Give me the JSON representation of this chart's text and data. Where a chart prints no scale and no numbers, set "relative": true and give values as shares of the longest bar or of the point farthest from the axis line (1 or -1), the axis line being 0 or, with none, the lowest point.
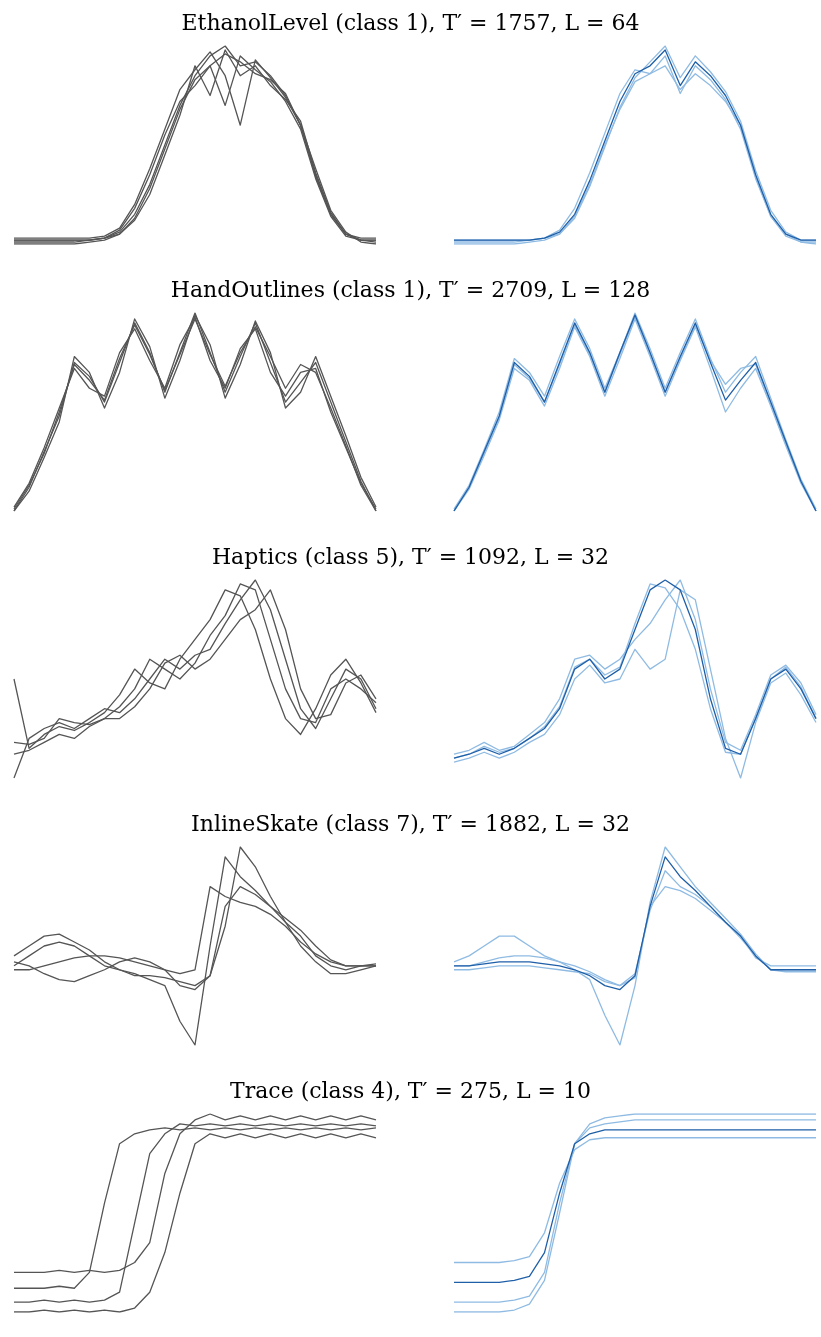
{
  "chart_data": [
    {
      "type": "line",
      "title": "EthanolLevel (class 1), T′ = 1757, L = 64",
      "relative": true,
      "marker": "none",
      "categories": [
        null,
        null,
        null,
        null,
        null,
        null,
        null,
        null,
        null,
        null,
        null,
        null,
        null,
        null,
        null,
        null,
        null,
        null,
        null,
        null,
        null,
        null,
        null,
        null,
        null
      ],
      "series": [
        {
          "color": "#555555",
          "values": [
            0.02,
            0.02,
            0.02,
            0.02,
            0.02,
            0.02,
            0.03,
            0.06,
            0.15,
            0.3,
            0.5,
            0.7,
            0.85,
            0.95,
            1.0,
            0.9,
            0.92,
            0.85,
            0.75,
            0.6,
            0.35,
            0.15,
            0.05,
            0.02,
            0.02
          ]
        },
        {
          "color": "#555555",
          "values": [
            0.02,
            0.02,
            0.02,
            0.02,
            0.02,
            0.02,
            0.03,
            0.07,
            0.18,
            0.35,
            0.55,
            0.72,
            0.8,
            0.9,
            0.7,
            0.95,
            0.88,
            0.82,
            0.72,
            0.58,
            0.33,
            0.14,
            0.04,
            0.02,
            0.02
          ]
        },
        {
          "color": "#555555",
          "values": [
            0.01,
            0.01,
            0.01,
            0.01,
            0.01,
            0.02,
            0.03,
            0.05,
            0.12,
            0.25,
            0.45,
            0.65,
            0.9,
            0.75,
            0.98,
            0.85,
            0.9,
            0.8,
            0.73,
            0.62,
            0.36,
            0.16,
            0.05,
            0.02,
            0.01
          ]
        },
        {
          "color": "#555555",
          "values": [
            0.03,
            0.03,
            0.03,
            0.03,
            0.03,
            0.03,
            0.04,
            0.08,
            0.2,
            0.38,
            0.58,
            0.78,
            0.88,
            0.97,
            0.85,
            0.6,
            0.93,
            0.84,
            0.74,
            0.6,
            0.34,
            0.15,
            0.05,
            0.03,
            0.03
          ]
        },
        {
          "color": "#555555",
          "values": [
            0.0,
            0.0,
            0.0,
            0.0,
            0.0,
            0.01,
            0.02,
            0.05,
            0.13,
            0.28,
            0.48,
            0.68,
            0.83,
            0.9,
            0.96,
            0.92,
            0.86,
            0.83,
            0.76,
            0.6,
            0.38,
            0.17,
            0.06,
            0.01,
            0.0
          ]
        }
      ]
    },
    {
      "type": "line",
      "relative": true,
      "marker": "none",
      "categories": [
        null,
        null,
        null,
        null,
        null,
        null,
        null,
        null,
        null,
        null,
        null,
        null,
        null,
        null,
        null,
        null,
        null,
        null,
        null,
        null,
        null,
        null,
        null,
        null,
        null
      ],
      "series": [
        {
          "color": "#8fbbe3",
          "values": [
            0.01,
            0.01,
            0.01,
            0.01,
            0.01,
            0.02,
            0.03,
            0.07,
            0.18,
            0.36,
            0.56,
            0.76,
            0.88,
            0.86,
            0.95,
            0.76,
            0.9,
            0.83,
            0.73,
            0.58,
            0.33,
            0.14,
            0.04,
            0.01,
            0.01
          ]
        },
        {
          "color": "#8fbbe3",
          "values": [
            0.02,
            0.02,
            0.02,
            0.02,
            0.02,
            0.02,
            0.03,
            0.05,
            0.13,
            0.29,
            0.49,
            0.69,
            0.84,
            0.92,
            1.0,
            0.84,
            0.95,
            0.87,
            0.77,
            0.62,
            0.37,
            0.17,
            0.06,
            0.02,
            0.02
          ]
        },
        {
          "color": "#8fbbe3",
          "values": [
            0.0,
            0.0,
            0.0,
            0.0,
            0.0,
            0.01,
            0.02,
            0.05,
            0.14,
            0.3,
            0.5,
            0.68,
            0.82,
            0.86,
            0.9,
            0.78,
            0.86,
            0.8,
            0.72,
            0.6,
            0.34,
            0.14,
            0.05,
            0.01,
            0.0
          ]
        },
        {
          "color": "#1f5fa8",
          "values": [
            0.02,
            0.02,
            0.02,
            0.02,
            0.02,
            0.02,
            0.03,
            0.06,
            0.15,
            0.32,
            0.52,
            0.72,
            0.86,
            0.9,
            0.98,
            0.8,
            0.92,
            0.85,
            0.75,
            0.6,
            0.35,
            0.15,
            0.05,
            0.02,
            0.02
          ]
        }
      ]
    },
    {
      "type": "line",
      "title": "HandOutlines (class 1), T′ = 2709, L = 128",
      "relative": true,
      "marker": "none",
      "categories": [
        null,
        null,
        null,
        null,
        null,
        null,
        null,
        null,
        null,
        null,
        null,
        null,
        null,
        null,
        null,
        null,
        null,
        null,
        null,
        null,
        null,
        null,
        null,
        null,
        null
      ],
      "series": [
        {
          "color": "#555555",
          "values": [
            0.0,
            0.12,
            0.3,
            0.48,
            0.75,
            0.68,
            0.55,
            0.75,
            0.95,
            0.8,
            0.6,
            0.8,
            1.0,
            0.8,
            0.6,
            0.78,
            0.95,
            0.75,
            0.55,
            0.65,
            0.75,
            0.55,
            0.35,
            0.15,
            0.0
          ]
        },
        {
          "color": "#555555",
          "values": [
            0.02,
            0.14,
            0.32,
            0.52,
            0.72,
            0.62,
            0.58,
            0.8,
            0.92,
            0.76,
            0.62,
            0.84,
            0.98,
            0.76,
            0.62,
            0.82,
            0.92,
            0.7,
            0.58,
            0.7,
            0.72,
            0.5,
            0.32,
            0.14,
            0.01
          ]
        },
        {
          "color": "#555555",
          "values": [
            0.0,
            0.1,
            0.27,
            0.45,
            0.78,
            0.7,
            0.52,
            0.7,
            0.97,
            0.83,
            0.57,
            0.76,
            0.99,
            0.84,
            0.57,
            0.74,
            0.96,
            0.8,
            0.52,
            0.6,
            0.78,
            0.58,
            0.38,
            0.17,
            0.02
          ]
        },
        {
          "color": "#555555",
          "values": [
            0.01,
            0.13,
            0.29,
            0.5,
            0.74,
            0.66,
            0.56,
            0.77,
            0.94,
            0.79,
            0.61,
            0.79,
            0.97,
            0.79,
            0.63,
            0.8,
            0.93,
            0.78,
            0.62,
            0.74,
            0.7,
            0.52,
            0.33,
            0.13,
            0.0
          ]
        }
      ]
    },
    {
      "type": "line",
      "relative": true,
      "marker": "none",
      "categories": [
        null,
        null,
        null,
        null,
        null,
        null,
        null,
        null,
        null,
        null,
        null,
        null,
        null,
        null,
        null,
        null,
        null,
        null,
        null,
        null,
        null,
        null,
        null,
        null,
        null
      ],
      "series": [
        {
          "color": "#8fbbe3",
          "values": [
            0.01,
            0.13,
            0.31,
            0.5,
            0.77,
            0.7,
            0.58,
            0.78,
            0.97,
            0.82,
            0.62,
            0.8,
            1.0,
            0.82,
            0.62,
            0.8,
            0.97,
            0.77,
            0.6,
            0.7,
            0.78,
            0.57,
            0.36,
            0.16,
            0.01
          ]
        },
        {
          "color": "#8fbbe3",
          "values": [
            0.0,
            0.11,
            0.28,
            0.46,
            0.72,
            0.66,
            0.53,
            0.72,
            0.93,
            0.78,
            0.58,
            0.77,
            0.97,
            0.78,
            0.58,
            0.76,
            0.93,
            0.72,
            0.5,
            0.62,
            0.72,
            0.53,
            0.33,
            0.14,
            0.0
          ]
        },
        {
          "color": "#8fbbe3",
          "values": [
            0.0,
            0.12,
            0.29,
            0.47,
            0.74,
            0.67,
            0.55,
            0.74,
            0.94,
            0.79,
            0.6,
            0.79,
            0.98,
            0.79,
            0.6,
            0.77,
            0.94,
            0.76,
            0.64,
            0.72,
            0.74,
            0.54,
            0.34,
            0.15,
            0.0
          ]
        },
        {
          "color": "#1f5fa8",
          "values": [
            0.0,
            0.12,
            0.3,
            0.48,
            0.75,
            0.68,
            0.55,
            0.75,
            0.95,
            0.8,
            0.6,
            0.8,
            0.99,
            0.8,
            0.6,
            0.78,
            0.95,
            0.75,
            0.56,
            0.66,
            0.75,
            0.55,
            0.35,
            0.15,
            0.0
          ]
        }
      ]
    },
    {
      "type": "line",
      "title": "Haptics (class 5), T′ = 1092, L = 32",
      "relative": true,
      "marker": "none",
      "categories": [
        null,
        null,
        null,
        null,
        null,
        null,
        null,
        null,
        null,
        null,
        null,
        null,
        null,
        null,
        null,
        null,
        null,
        null,
        null,
        null,
        null,
        null,
        null,
        null,
        null
      ],
      "series": [
        {
          "color": "#555555",
          "values": [
            0.0,
            0.2,
            0.25,
            0.28,
            0.25,
            0.3,
            0.35,
            0.33,
            0.4,
            0.5,
            0.6,
            0.55,
            0.62,
            0.65,
            0.78,
            0.9,
            1.0,
            0.85,
            0.6,
            0.35,
            0.25,
            0.4,
            0.55,
            0.5,
            0.35
          ]
        },
        {
          "color": "#555555",
          "values": [
            0.5,
            0.15,
            0.22,
            0.26,
            0.24,
            0.28,
            0.33,
            0.42,
            0.55,
            0.48,
            0.45,
            0.6,
            0.7,
            0.8,
            0.95,
            0.92,
            0.75,
            0.5,
            0.3,
            0.22,
            0.35,
            0.52,
            0.6,
            0.48,
            0.33
          ]
        },
        {
          "color": "#555555",
          "values": [
            0.18,
            0.17,
            0.2,
            0.3,
            0.28,
            0.27,
            0.3,
            0.36,
            0.45,
            0.6,
            0.55,
            0.5,
            0.58,
            0.72,
            0.82,
            0.98,
            0.95,
            0.7,
            0.45,
            0.3,
            0.28,
            0.45,
            0.5,
            0.45,
            0.38
          ]
        },
        {
          "color": "#555555",
          "values": [
            0.12,
            0.14,
            0.18,
            0.22,
            0.2,
            0.26,
            0.3,
            0.3,
            0.36,
            0.45,
            0.58,
            0.62,
            0.55,
            0.6,
            0.7,
            0.8,
            0.85,
            0.95,
            0.75,
            0.45,
            0.3,
            0.32,
            0.48,
            0.52,
            0.4
          ]
        }
      ]
    },
    {
      "type": "line",
      "relative": true,
      "marker": "none",
      "categories": [
        null,
        null,
        null,
        null,
        null,
        null,
        null,
        null,
        null,
        null,
        null,
        null,
        null,
        null,
        null,
        null,
        null,
        null,
        null,
        null,
        null,
        null,
        null,
        null,
        null
      ],
      "series": [
        {
          "color": "#8fbbe3",
          "values": [
            0.12,
            0.14,
            0.18,
            0.14,
            0.16,
            0.22,
            0.28,
            0.4,
            0.6,
            0.62,
            0.55,
            0.6,
            0.7,
            0.78,
            0.9,
            1.0,
            0.8,
            0.45,
            0.18,
            0.14,
            0.32,
            0.52,
            0.57,
            0.48,
            0.32
          ]
        },
        {
          "color": "#8fbbe3",
          "values": [
            0.08,
            0.1,
            0.13,
            0.1,
            0.13,
            0.18,
            0.22,
            0.32,
            0.5,
            0.57,
            0.48,
            0.5,
            0.65,
            0.55,
            0.6,
            0.95,
            0.9,
            0.55,
            0.2,
            0.0,
            0.28,
            0.48,
            0.53,
            0.42,
            0.28
          ]
        },
        {
          "color": "#8fbbe3",
          "values": [
            0.1,
            0.12,
            0.16,
            0.13,
            0.15,
            0.2,
            0.26,
            0.36,
            0.56,
            0.6,
            0.52,
            0.56,
            0.78,
            0.98,
            0.96,
            0.85,
            0.65,
            0.35,
            0.13,
            0.12,
            0.3,
            0.5,
            0.56,
            0.46,
            0.3
          ]
        },
        {
          "color": "#1f5fa8",
          "values": [
            0.1,
            0.12,
            0.15,
            0.12,
            0.15,
            0.2,
            0.25,
            0.35,
            0.55,
            0.6,
            0.5,
            0.55,
            0.75,
            0.95,
            1.0,
            0.95,
            0.75,
            0.4,
            0.15,
            0.12,
            0.3,
            0.5,
            0.55,
            0.45,
            0.3
          ]
        }
      ]
    },
    {
      "type": "line",
      "title": "InlineSkate (class 7), T′ = 1882, L = 32",
      "relative": true,
      "marker": "none",
      "categories": [
        null,
        null,
        null,
        null,
        null,
        null,
        null,
        null,
        null,
        null,
        null,
        null,
        null,
        null,
        null,
        null,
        null,
        null,
        null,
        null,
        null,
        null,
        null,
        null,
        null
      ],
      "series": [
        {
          "color": "#555555",
          "values": [
            0.4,
            0.45,
            0.5,
            0.52,
            0.5,
            0.45,
            0.4,
            0.38,
            0.36,
            0.33,
            0.3,
            0.12,
            0.0,
            0.5,
            0.95,
            0.85,
            0.78,
            0.7,
            0.62,
            0.55,
            0.45,
            0.4,
            0.38,
            0.4,
            0.4
          ]
        },
        {
          "color": "#555555",
          "values": [
            0.42,
            0.4,
            0.36,
            0.33,
            0.32,
            0.35,
            0.38,
            0.42,
            0.44,
            0.42,
            0.38,
            0.3,
            0.28,
            0.35,
            0.6,
            1.0,
            0.9,
            0.75,
            0.62,
            0.5,
            0.42,
            0.36,
            0.36,
            0.38,
            0.4
          ]
        },
        {
          "color": "#555555",
          "values": [
            0.38,
            0.38,
            0.4,
            0.42,
            0.44,
            0.45,
            0.45,
            0.44,
            0.42,
            0.4,
            0.38,
            0.36,
            0.38,
            0.8,
            0.75,
            0.72,
            0.7,
            0.66,
            0.6,
            0.52,
            0.46,
            0.42,
            0.4,
            0.4,
            0.4
          ]
        },
        {
          "color": "#555555",
          "values": [
            0.45,
            0.5,
            0.55,
            0.56,
            0.52,
            0.48,
            0.42,
            0.38,
            0.35,
            0.35,
            0.34,
            0.32,
            0.3,
            0.35,
            0.7,
            0.8,
            0.76,
            0.7,
            0.64,
            0.58,
            0.5,
            0.43,
            0.4,
            0.4,
            0.41
          ]
        }
      ]
    },
    {
      "type": "line",
      "relative": true,
      "marker": "none",
      "categories": [
        null,
        null,
        null,
        null,
        null,
        null,
        null,
        null,
        null,
        null,
        null,
        null,
        null,
        null,
        null,
        null,
        null,
        null,
        null,
        null,
        null,
        null,
        null,
        null,
        null
      ],
      "series": [
        {
          "color": "#8fbbe3",
          "values": [
            0.42,
            0.45,
            0.5,
            0.55,
            0.55,
            0.5,
            0.45,
            0.42,
            0.38,
            0.33,
            0.15,
            0.0,
            0.3,
            0.72,
            1.0,
            0.9,
            0.8,
            0.72,
            0.64,
            0.56,
            0.46,
            0.38,
            0.37,
            0.37,
            0.37
          ]
        },
        {
          "color": "#8fbbe3",
          "values": [
            0.4,
            0.4,
            0.42,
            0.44,
            0.45,
            0.45,
            0.44,
            0.42,
            0.4,
            0.37,
            0.33,
            0.3,
            0.36,
            0.68,
            0.88,
            0.8,
            0.76,
            0.7,
            0.62,
            0.54,
            0.45,
            0.38,
            0.38,
            0.38,
            0.38
          ]
        },
        {
          "color": "#8fbbe3",
          "values": [
            0.38,
            0.38,
            0.39,
            0.4,
            0.4,
            0.4,
            0.39,
            0.38,
            0.37,
            0.36,
            0.32,
            0.3,
            0.34,
            0.7,
            0.8,
            0.78,
            0.74,
            0.68,
            0.62,
            0.55,
            0.44,
            0.4,
            0.4,
            0.4,
            0.4
          ]
        },
        {
          "color": "#1f5fa8",
          "values": [
            0.4,
            0.4,
            0.41,
            0.42,
            0.42,
            0.42,
            0.41,
            0.4,
            0.38,
            0.35,
            0.3,
            0.28,
            0.35,
            0.7,
            0.95,
            0.85,
            0.78,
            0.7,
            0.62,
            0.55,
            0.45,
            0.38,
            0.38,
            0.38,
            0.38
          ]
        }
      ]
    },
    {
      "type": "line",
      "title": "Trace (class 4), T′ = 275, L = 10",
      "relative": true,
      "marker": "none",
      "categories": [
        null,
        null,
        null,
        null,
        null,
        null,
        null,
        null,
        null,
        null,
        null,
        null,
        null,
        null,
        null,
        null,
        null,
        null,
        null,
        null,
        null,
        null,
        null,
        null,
        null
      ],
      "series": [
        {
          "color": "#555555",
          "values": [
            0.12,
            0.12,
            0.12,
            0.13,
            0.12,
            0.2,
            0.55,
            0.85,
            0.9,
            0.92,
            0.93,
            0.92,
            0.93,
            0.92,
            0.93,
            0.92,
            0.93,
            0.92,
            0.93,
            0.92,
            0.93,
            0.92,
            0.93,
            0.92,
            0.93
          ]
        },
        {
          "color": "#555555",
          "values": [
            0.05,
            0.05,
            0.06,
            0.05,
            0.06,
            0.05,
            0.06,
            0.1,
            0.45,
            0.8,
            0.9,
            0.95,
            0.94,
            0.95,
            0.94,
            0.95,
            0.94,
            0.95,
            0.94,
            0.95,
            0.94,
            0.95,
            0.94,
            0.95,
            0.94
          ]
        },
        {
          "color": "#555555",
          "values": [
            0.2,
            0.2,
            0.2,
            0.21,
            0.2,
            0.21,
            0.2,
            0.21,
            0.25,
            0.35,
            0.7,
            0.9,
            0.97,
            1.0,
            0.97,
            0.99,
            0.97,
            0.99,
            0.97,
            0.99,
            0.97,
            0.99,
            0.97,
            0.99,
            0.97
          ]
        },
        {
          "color": "#555555",
          "values": [
            0.0,
            0.0,
            0.01,
            0.0,
            0.01,
            0.0,
            0.01,
            0.0,
            0.02,
            0.1,
            0.3,
            0.6,
            0.85,
            0.9,
            0.88,
            0.9,
            0.88,
            0.9,
            0.88,
            0.9,
            0.88,
            0.9,
            0.88,
            0.9,
            0.88
          ]
        }
      ]
    },
    {
      "type": "line",
      "relative": true,
      "marker": "none",
      "categories": [
        null,
        null,
        null,
        null,
        null,
        null,
        null,
        null,
        null,
        null,
        null,
        null,
        null,
        null,
        null,
        null,
        null,
        null,
        null,
        null,
        null,
        null,
        null,
        null,
        null
      ],
      "series": [
        {
          "color": "#8fbbe3",
          "values": [
            0.05,
            0.05,
            0.05,
            0.05,
            0.06,
            0.08,
            0.2,
            0.55,
            0.85,
            0.93,
            0.95,
            0.96,
            0.97,
            0.97,
            0.97,
            0.97,
            0.97,
            0.97,
            0.97,
            0.97,
            0.97,
            0.97,
            0.97,
            0.97,
            0.97
          ]
        },
        {
          "color": "#8fbbe3",
          "values": [
            0.25,
            0.25,
            0.25,
            0.25,
            0.26,
            0.28,
            0.4,
            0.65,
            0.82,
            0.87,
            0.88,
            0.88,
            0.88,
            0.88,
            0.88,
            0.88,
            0.88,
            0.88,
            0.88,
            0.88,
            0.88,
            0.88,
            0.88,
            0.88,
            0.88
          ]
        },
        {
          "color": "#8fbbe3",
          "values": [
            0.0,
            0.0,
            0.0,
            0.0,
            0.01,
            0.04,
            0.16,
            0.5,
            0.85,
            0.95,
            0.98,
            0.99,
            1.0,
            1.0,
            1.0,
            1.0,
            1.0,
            1.0,
            1.0,
            1.0,
            1.0,
            1.0,
            1.0,
            1.0,
            1.0
          ]
        },
        {
          "color": "#1f5fa8",
          "values": [
            0.15,
            0.15,
            0.15,
            0.15,
            0.16,
            0.18,
            0.3,
            0.6,
            0.85,
            0.9,
            0.92,
            0.92,
            0.92,
            0.92,
            0.92,
            0.92,
            0.92,
            0.92,
            0.92,
            0.92,
            0.92,
            0.92,
            0.92,
            0.92,
            0.92
          ]
        }
      ]
    }
  ]
}
